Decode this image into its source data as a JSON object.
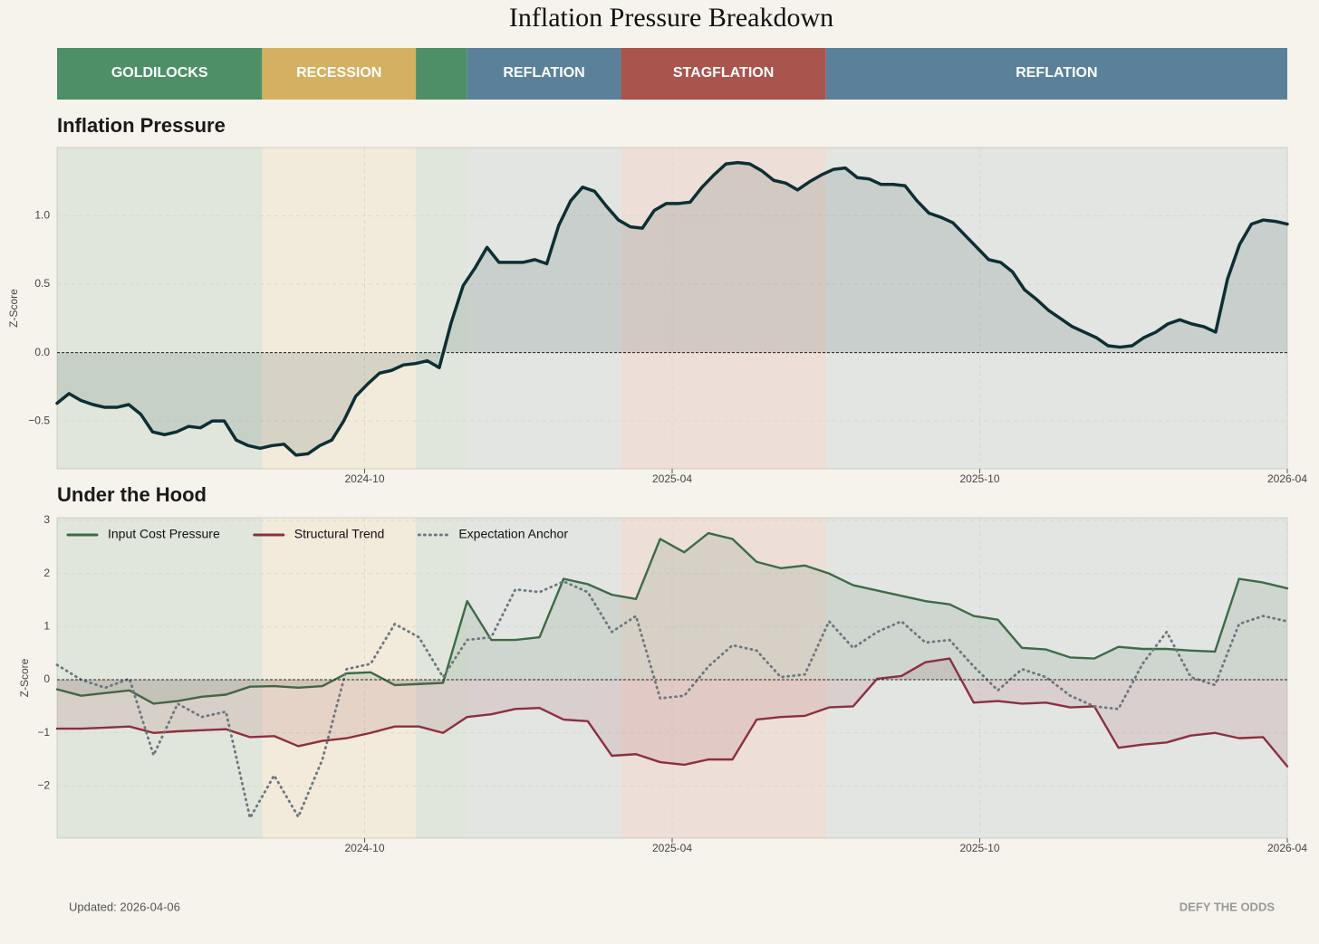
{
  "title": "Inflation Pressure Breakdown",
  "regimes": [
    {
      "label": "GOLDILOCKS",
      "start": "2024-04",
      "end": "2024-08",
      "color": "#4e8f68"
    },
    {
      "label": "RECESSION",
      "start": "2024-08",
      "end": "2024-11",
      "color": "#d4b062"
    },
    {
      "label": null,
      "start": "2024-11",
      "end": "2024-12",
      "color": "#4e8f68"
    },
    {
      "label": "REFLATION",
      "start": "2024-12",
      "end": "2025-03",
      "color": "#5a8199"
    },
    {
      "label": "STAGFLATION",
      "start": "2025-03",
      "end": "2025-07",
      "color": "#a9544c"
    },
    {
      "label": "REFLATION",
      "start": "2025-07",
      "end": "2026-04",
      "color": "#5a8199"
    }
  ],
  "chart_data": [
    {
      "type": "area",
      "title": "Inflation Pressure",
      "ylabel": "Z-Score",
      "color": "#0d2f33",
      "xlim": [
        "2024-04",
        "2026-04"
      ],
      "xticks": [
        "2024-10",
        "2025-04",
        "2025-10",
        "2026-04"
      ],
      "ylim": [
        -0.85,
        1.5
      ],
      "yticks": [
        {
          "value": -0.5,
          "label": "−0.5"
        },
        {
          "value": 0,
          "label": "0.0"
        },
        0.5,
        {
          "value": 1,
          "label": "1.0"
        }
      ],
      "grid": true,
      "values": [
        -0.37,
        -0.3,
        -0.35,
        -0.38,
        -0.4,
        -0.4,
        -0.38,
        -0.45,
        -0.58,
        -0.6,
        -0.58,
        -0.54,
        -0.55,
        -0.5,
        -0.5,
        -0.64,
        -0.68,
        -0.7,
        -0.68,
        -0.67,
        -0.75,
        -0.74,
        -0.68,
        -0.64,
        -0.5,
        -0.32,
        -0.23,
        -0.15,
        -0.13,
        -0.09,
        -0.08,
        -0.06,
        -0.11,
        0.22,
        0.49,
        0.62,
        0.77,
        0.66,
        0.66,
        0.66,
        0.68,
        0.65,
        0.93,
        1.11,
        1.21,
        1.18,
        1.07,
        0.97,
        0.92,
        0.91,
        1.04,
        1.09,
        1.09,
        1.1,
        1.21,
        1.3,
        1.38,
        1.39,
        1.38,
        1.33,
        1.26,
        1.24,
        1.19,
        1.25,
        1.3,
        1.34,
        1.35,
        1.28,
        1.27,
        1.23,
        1.23,
        1.22,
        1.11,
        1.02,
        0.99,
        0.95,
        0.86,
        0.77,
        0.68,
        0.66,
        0.59,
        0.46,
        0.39,
        0.31,
        0.25,
        0.19,
        0.15,
        0.11,
        0.05,
        0.04,
        0.05,
        0.11,
        0.15,
        0.21,
        0.24,
        0.21,
        0.19,
        0.15,
        0.54,
        0.79,
        0.94,
        0.97,
        0.96,
        0.94
      ]
    },
    {
      "type": "line",
      "title": "Under the Hood",
      "ylabel": "Z-Score",
      "xlim": [
        "2024-04",
        "2026-04"
      ],
      "xticks": [
        "2024-10",
        "2025-04",
        "2025-10",
        "2026-04"
      ],
      "ylim": [
        -2.98,
        3.05
      ],
      "yticks": [
        {
          "value": -2,
          "label": "−2"
        },
        {
          "value": -1,
          "label": "−1"
        },
        0,
        1,
        2,
        3
      ],
      "grid": true,
      "legend": "upper left",
      "series": [
        {
          "name": "Input Cost Pressure",
          "color": "#3d6b47",
          "fill": true,
          "style": "solid",
          "values": [
            -0.18,
            -0.3,
            -0.25,
            -0.2,
            -0.45,
            -0.4,
            -0.32,
            -0.28,
            -0.13,
            -0.12,
            -0.15,
            -0.12,
            0.12,
            0.14,
            -0.1,
            -0.08,
            -0.06,
            1.48,
            0.75,
            0.75,
            0.8,
            1.9,
            1.8,
            1.6,
            1.52,
            2.65,
            2.4,
            2.76,
            2.65,
            2.22,
            2.1,
            2.15,
            2.0,
            1.78,
            1.68,
            1.58,
            1.48,
            1.42,
            1.2,
            1.13,
            0.6,
            0.57,
            0.42,
            0.4,
            0.62,
            0.58,
            0.58,
            0.55,
            0.53,
            1.9,
            1.83,
            1.72
          ]
        },
        {
          "name": "Structural Trend",
          "color": "#8b3040",
          "fill": true,
          "style": "solid",
          "values": [
            -0.92,
            -0.92,
            -0.9,
            -0.88,
            -1.0,
            -0.97,
            -0.95,
            -0.93,
            -1.08,
            -1.06,
            -1.25,
            -1.15,
            -1.1,
            -1.0,
            -0.88,
            -0.88,
            -1.0,
            -0.7,
            -0.65,
            -0.55,
            -0.53,
            -0.75,
            -0.78,
            -1.43,
            -1.4,
            -1.55,
            -1.6,
            -1.5,
            -1.5,
            -0.75,
            -0.7,
            -0.68,
            -0.52,
            -0.5,
            0.02,
            0.07,
            0.33,
            0.4,
            -0.43,
            -0.4,
            -0.45,
            -0.43,
            -0.52,
            -0.5,
            -1.28,
            -1.22,
            -1.18,
            -1.05,
            -1.0,
            -1.1,
            -1.08,
            -1.63
          ]
        },
        {
          "name": "Expectation Anchor",
          "color": "#6b7780",
          "fill": false,
          "style": "dotted",
          "values": [
            0.28,
            0.0,
            -0.15,
            0.02,
            -1.42,
            -0.45,
            -0.7,
            -0.6,
            -2.6,
            -1.8,
            -2.58,
            -1.5,
            0.2,
            0.3,
            1.05,
            0.8,
            0.05,
            0.75,
            0.8,
            1.7,
            1.65,
            1.85,
            1.65,
            0.9,
            1.2,
            -0.35,
            -0.3,
            0.25,
            0.65,
            0.55,
            0.05,
            0.1,
            1.1,
            0.6,
            0.9,
            1.1,
            0.7,
            0.75,
            0.25,
            -0.2,
            0.2,
            0.05,
            -0.3,
            -0.5,
            -0.55,
            0.3,
            0.9,
            0.05,
            -0.1,
            1.05,
            1.2,
            1.1
          ]
        }
      ]
    }
  ],
  "footer": {
    "updated": "Updated: 2026-04-06",
    "brand": "DEFY THE ODDS"
  }
}
